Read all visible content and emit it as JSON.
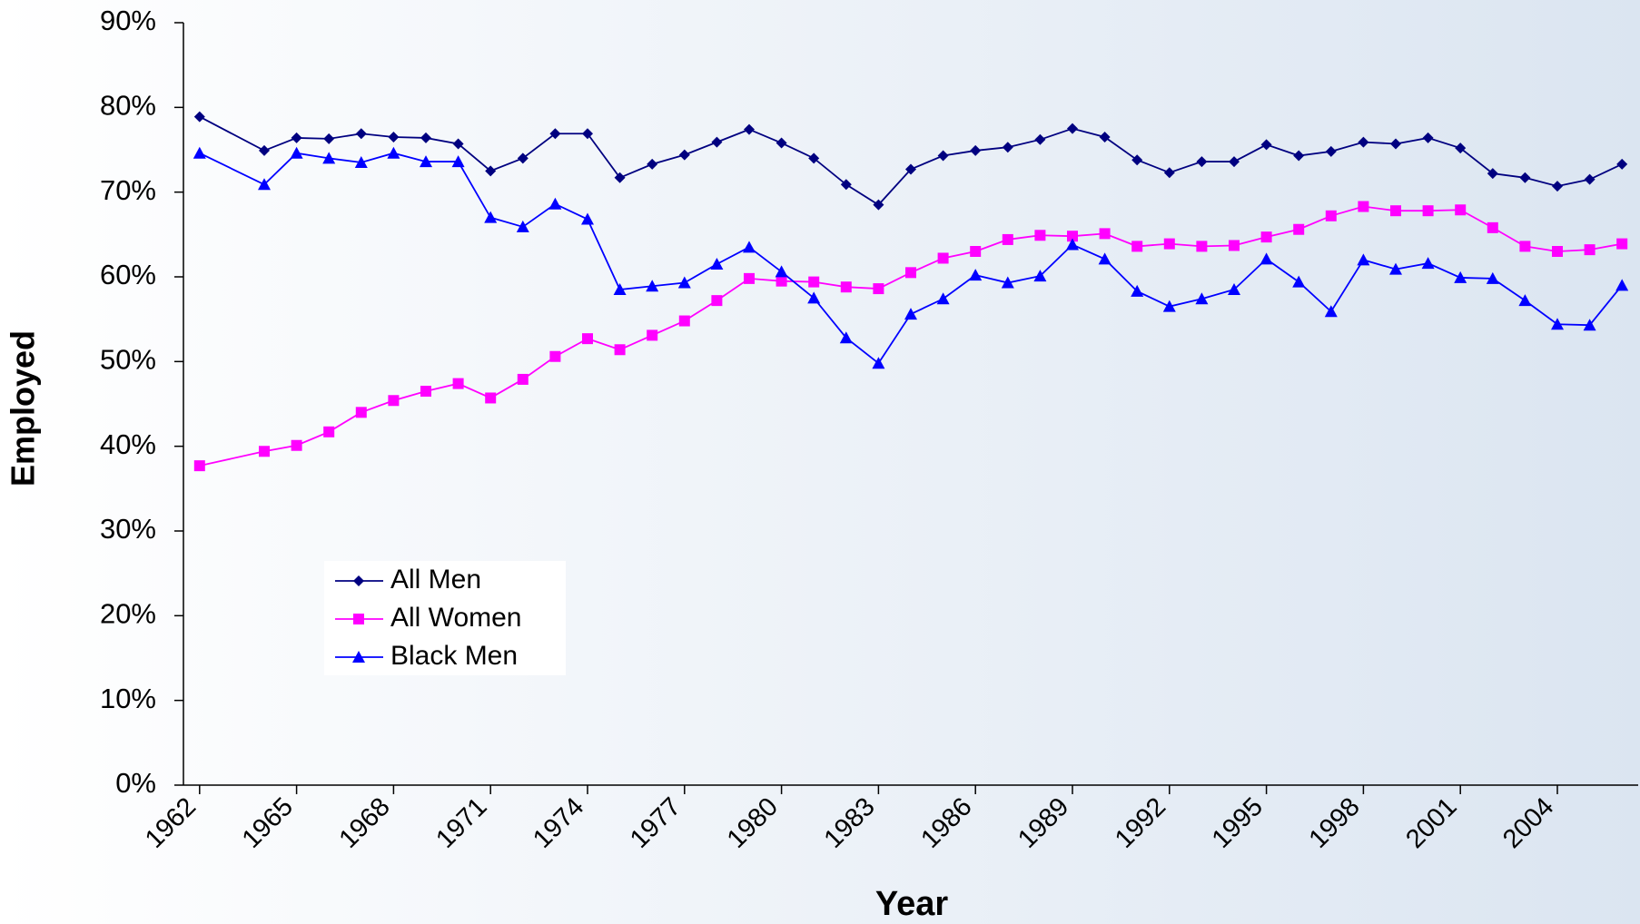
{
  "chart_data": {
    "type": "line",
    "x_label": "Year",
    "y_label": "Employed",
    "x": [
      1962,
      1964,
      1965,
      1966,
      1967,
      1968,
      1969,
      1970,
      1971,
      1972,
      1973,
      1974,
      1975,
      1976,
      1977,
      1978,
      1979,
      1980,
      1981,
      1982,
      1983,
      1984,
      1985,
      1986,
      1987,
      1988,
      1989,
      1990,
      1991,
      1992,
      1993,
      1994,
      1995,
      1996,
      1997,
      1998,
      1999,
      2000,
      2001,
      2002,
      2003,
      2004,
      2005,
      2006
    ],
    "series": [
      {
        "name": "All Men",
        "color": "#000080",
        "marker": "diamond",
        "values": [
          78.9,
          74.9,
          76.4,
          76.3,
          76.9,
          76.5,
          76.4,
          75.7,
          72.5,
          74.0,
          76.9,
          76.9,
          71.7,
          73.3,
          74.4,
          75.9,
          77.4,
          75.8,
          74.0,
          70.9,
          68.5,
          72.7,
          74.3,
          74.9,
          75.3,
          76.2,
          77.5,
          76.5,
          73.8,
          72.3,
          73.6,
          73.6,
          75.6,
          74.3,
          74.8,
          75.9,
          75.7,
          76.4,
          75.2,
          72.2,
          71.7,
          70.7,
          71.5,
          73.3
        ]
      },
      {
        "name": "All Women",
        "color": "#ff00ff",
        "marker": "square",
        "values": [
          37.7,
          39.4,
          40.1,
          41.7,
          44.0,
          45.4,
          46.5,
          47.4,
          45.7,
          47.9,
          50.6,
          52.7,
          51.4,
          53.1,
          54.8,
          57.2,
          59.8,
          59.5,
          59.4,
          58.8,
          58.6,
          60.5,
          62.2,
          63.0,
          64.4,
          64.9,
          64.8,
          65.1,
          63.6,
          63.9,
          63.6,
          63.7,
          64.7,
          65.6,
          67.2,
          68.3,
          67.8,
          67.8,
          67.9,
          65.8,
          63.6,
          63.0,
          63.2,
          63.9
        ]
      },
      {
        "name": "Black Men",
        "color": "#0000ff",
        "marker": "triangle",
        "values": [
          74.6,
          70.9,
          74.6,
          74.0,
          73.5,
          74.6,
          73.6,
          73.6,
          67.0,
          65.9,
          68.6,
          66.8,
          58.5,
          58.9,
          59.3,
          61.5,
          63.5,
          60.6,
          57.5,
          52.8,
          49.8,
          55.6,
          57.4,
          60.2,
          59.3,
          60.1,
          63.8,
          62.1,
          58.3,
          56.5,
          57.4,
          58.5,
          62.1,
          59.4,
          55.9,
          62.0,
          60.9,
          61.6,
          59.9,
          59.8,
          57.2,
          54.4,
          54.3,
          59.0
        ]
      }
    ],
    "xlim": [
      1961.5,
      2006.5
    ],
    "xticks": [
      1962,
      1965,
      1968,
      1971,
      1974,
      1977,
      1980,
      1983,
      1986,
      1989,
      1992,
      1995,
      1998,
      2001,
      2004
    ],
    "ylim": [
      0,
      90
    ],
    "yticks": [
      {
        "value": 0,
        "label": "0%"
      },
      {
        "value": 10,
        "label": "10%"
      },
      {
        "value": 20,
        "label": "20%"
      },
      {
        "value": 30,
        "label": "30%"
      },
      {
        "value": 40,
        "label": "40%"
      },
      {
        "value": 50,
        "label": "50%"
      },
      {
        "value": 60,
        "label": "60%"
      },
      {
        "value": 70,
        "label": "70%"
      },
      {
        "value": 80,
        "label": "80%"
      },
      {
        "value": 90,
        "label": "90%"
      }
    ],
    "legend": "lower-left",
    "grid": false
  }
}
